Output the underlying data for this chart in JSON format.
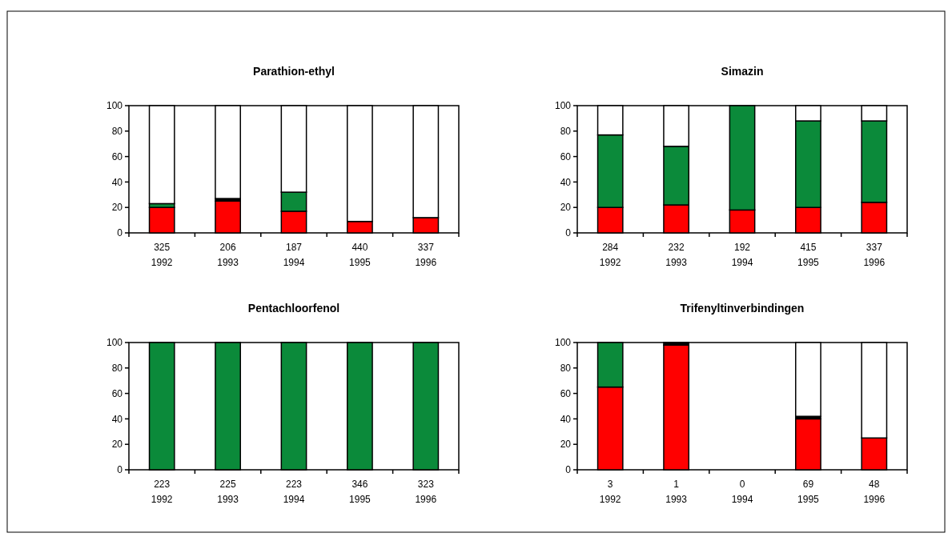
{
  "chart_data": [
    {
      "type": "bar",
      "title": "Parathion-ethyl",
      "stacked": true,
      "categories": [
        "325\n1992",
        "206\n1993",
        "187\n1994",
        "440\n1995",
        "337\n1996"
      ],
      "ylim": [
        0,
        100
      ],
      "yticks": [
        0,
        20,
        40,
        60,
        80,
        100
      ],
      "series": [
        {
          "color": "#ff0000",
          "values": [
            20,
            25,
            17,
            9,
            12
          ]
        },
        {
          "color": "#000000",
          "values": [
            0,
            2,
            0,
            0,
            0
          ]
        },
        {
          "color": "#0b8a3a",
          "values": [
            3,
            0,
            15,
            0,
            0
          ]
        },
        {
          "color": "#ffffff",
          "values": [
            77,
            73,
            68,
            91,
            88
          ]
        }
      ]
    },
    {
      "type": "bar",
      "title": "Simazin",
      "stacked": true,
      "categories": [
        "284\n1992",
        "232\n1993",
        "192\n1994",
        "415\n1995",
        "337\n1996"
      ],
      "ylim": [
        0,
        100
      ],
      "yticks": [
        0,
        20,
        40,
        60,
        80,
        100
      ],
      "series": [
        {
          "color": "#ff0000",
          "values": [
            20,
            22,
            18,
            20,
            24
          ]
        },
        {
          "color": "#0b8a3a",
          "values": [
            57,
            46,
            82,
            68,
            64
          ]
        },
        {
          "color": "#ffffff",
          "values": [
            23,
            32,
            0,
            12,
            12
          ]
        }
      ]
    },
    {
      "type": "bar",
      "title": "Pentachloorfenol",
      "stacked": true,
      "categories": [
        "223\n1992",
        "225\n1993",
        "223\n1994",
        "346\n1995",
        "323\n1996"
      ],
      "ylim": [
        0,
        100
      ],
      "yticks": [
        0,
        20,
        40,
        60,
        80,
        100
      ],
      "series": [
        {
          "color": "#0b8a3a",
          "values": [
            100,
            100,
            100,
            100,
            100
          ]
        }
      ]
    },
    {
      "type": "bar",
      "title": "Trifenyltinverbindingen",
      "stacked": true,
      "categories": [
        "3\n1992",
        "1\n1993",
        "0\n1994",
        "69\n1995",
        "48\n1996"
      ],
      "ylim": [
        0,
        100
      ],
      "yticks": [
        0,
        20,
        40,
        60,
        80,
        100
      ],
      "series": [
        {
          "color": "#ff0000",
          "values": [
            65,
            98,
            0,
            40,
            25
          ]
        },
        {
          "color": "#000000",
          "values": [
            0,
            2,
            0,
            2,
            0
          ]
        },
        {
          "color": "#0b8a3a",
          "values": [
            35,
            0,
            0,
            0,
            0
          ]
        },
        {
          "color": "#ffffff",
          "values": [
            0,
            0,
            0,
            58,
            75
          ]
        }
      ]
    }
  ]
}
